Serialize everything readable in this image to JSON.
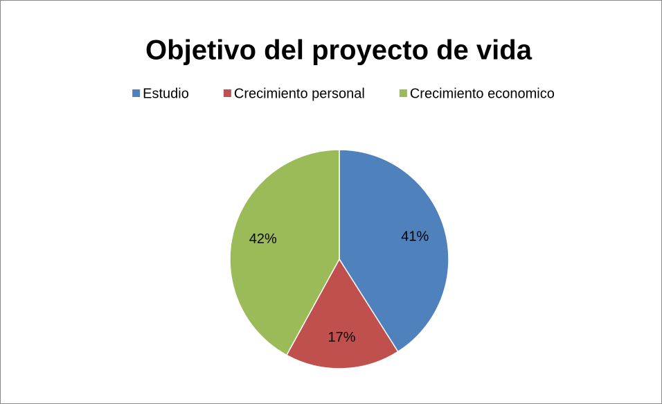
{
  "chart_data": {
    "type": "pie",
    "title": "Objetivo del proyecto de vida",
    "categories": [
      "Estudio",
      "Crecimiento personal",
      "Crecimiento economico"
    ],
    "values": [
      41,
      17,
      42
    ],
    "value_labels": [
      "41%",
      "17%",
      "42%"
    ],
    "colors": [
      "#4f81bd",
      "#c0504d",
      "#9bbb59"
    ],
    "legend": "top"
  }
}
